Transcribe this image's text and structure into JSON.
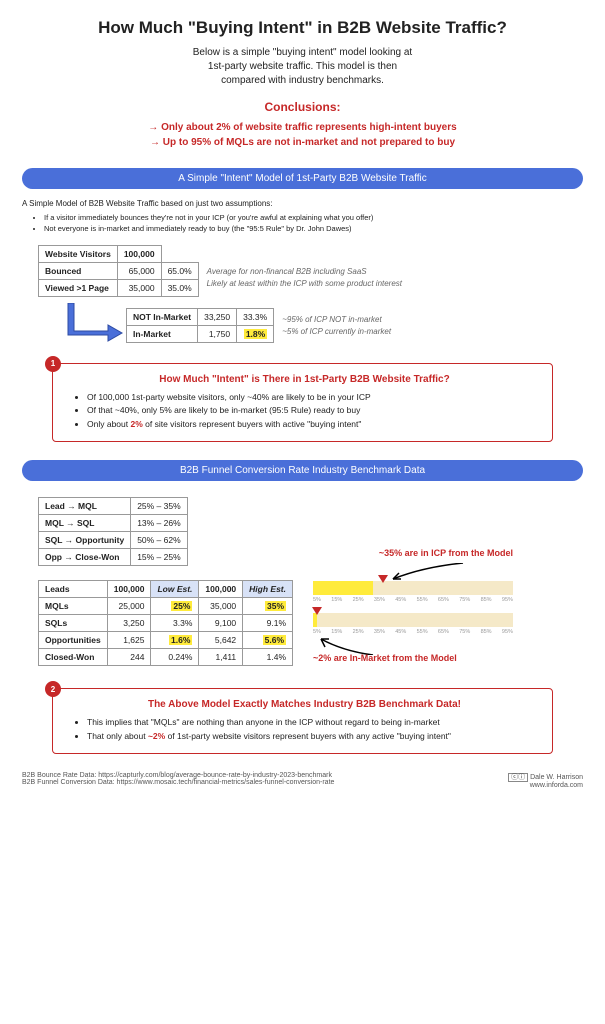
{
  "title": "How Much \"Buying Intent\" in B2B Website Traffic?",
  "subtitle_l1": "Below is a simple \"buying intent\" model looking at",
  "subtitle_l2": "1st-party website traffic. This model is then",
  "subtitle_l3": "compared with industry benchmarks.",
  "concl_hdr": "Conclusions:",
  "concl_1": "→ Only about 2% of website traffic represents high-intent buyers",
  "concl_2": "→ Up to 95% of MQLs are not in-market and not prepared to buy",
  "sec1_bar": "A Simple \"Intent\" Model of 1st-Party B2B Website Traffic",
  "sec1_intro": "A Simple Model of B2B Website Traffic based on just two assumptions:",
  "sec1_b1": "If a visitor immediately bounces they're not in your ICP (or you're awful at explaining what you offer)",
  "sec1_b2": "Not everyone is in-market and immediately ready to buy (the \"95:5 Rule\" by Dr. John Dawes)",
  "t1": {
    "r1c1": "Website Visitors",
    "r1c2": "100,000",
    "r2c1": "Bounced",
    "r2c2": "65,000",
    "r2c3": "65.0%",
    "r2n": "Average for non-financal B2B including SaaS",
    "r3c1": "Viewed >1 Page",
    "r3c2": "35,000",
    "r3c3": "35.0%",
    "r3n": "Likely at least within the ICP with some product interest"
  },
  "t2": {
    "r1c1": "NOT In-Market",
    "r1c2": "33,250",
    "r1c3": "33.3%",
    "r1n": "~95% of ICP NOT in-market",
    "r2c1": "In-Market",
    "r2c2": "1,750",
    "r2c3": "1.8%",
    "r2n": "~5% of ICP currently in-market"
  },
  "call1": {
    "badge": "1",
    "title": "How Much \"Intent\" is There in 1st-Party B2B Website Traffic?",
    "b1": "Of 100,000 1st-party website visitors, only ~40% are likely to be in your ICP",
    "b2": "Of that ~40%, only 5% are likely to be in-market (95:5 Rule) ready to buy",
    "b3a": "Only about ",
    "b3b": "2%",
    "b3c": " of site visitors represent buyers with active \"buying intent\""
  },
  "sec2_bar": "B2B Funnel Conversion Rate Industry Benchmark Data",
  "conv": {
    "r1a": "Lead → MQL",
    "r1b": "25% – 35%",
    "r2a": "MQL → SQL",
    "r2b": "13% – 26%",
    "r3a": "SQL → Opportunity",
    "r3b": "50% – 62%",
    "r4a": "Opp → Close-Won",
    "r4b": "15% – 25%"
  },
  "funnel": {
    "h1": "Leads",
    "h2": "100,000",
    "h3": "Low Est.",
    "h4": "100,000",
    "h5": "High Est.",
    "r2a": "MQLs",
    "r2b": "25,000",
    "r2c": "25%",
    "r2d": "35,000",
    "r2e": "35%",
    "r3a": "SQLs",
    "r3b": "3,250",
    "r3c": "3.3%",
    "r3d": "9,100",
    "r3e": "9.1%",
    "r4a": "Opportunities",
    "r4b": "1,625",
    "r4c": "1.6%",
    "r4d": "5,642",
    "r4e": "5.6%",
    "r5a": "Closed-Won",
    "r5b": "244",
    "r5c": "0.24%",
    "r5d": "1,411",
    "r5e": "1.4%"
  },
  "ann1": "~35% are in ICP from the Model",
  "ann2": "~2% are In-Market from the Model",
  "call2": {
    "badge": "2",
    "title": "The Above Model Exactly Matches Industry B2B Benchmark Data!",
    "b1": "This implies that \"MQLs\" are nothing than anyone in the ICP without regard to being in-market",
    "b2a": "That only about ",
    "b2b": "~2%",
    "b2c": " of 1st-party website visitors represent buyers with any active \"buying intent\""
  },
  "src1": "B2B Bounce Rate Data: https://capturly.com/blog/average-bounce-rate-by-industry-2023-benchmark",
  "src2": "B2B Funnel Conversion Data: https://www.mosaic.tech/financial-metrics/sales-funnel-conversion-rate",
  "cred1": "Dale W. Harrison",
  "cred2": "www.inforda.com",
  "colors": {
    "blue": "#4a6fd9",
    "red": "#c62828",
    "hl": "#ffeb3b",
    "barbg": "#f5e9c8"
  },
  "bars": {
    "ticks": [
      "5%",
      "15%",
      "25%",
      "35%",
      "45%",
      "55%",
      "65%",
      "75%",
      "85%",
      "95%"
    ],
    "top_fill_pct": 30,
    "top_marker_pct": 35,
    "bot_fill_pct": 2,
    "bot_marker_pct": 2
  }
}
